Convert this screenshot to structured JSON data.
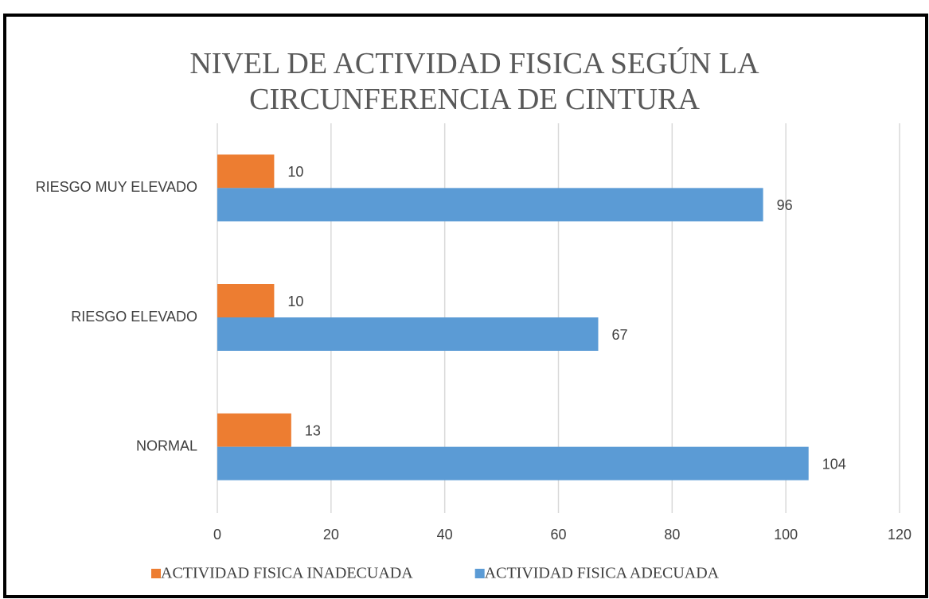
{
  "chart_data": {
    "type": "hbar",
    "title": "NIVEL DE ACTIVIDAD FISICA SEGÚN LA CIRCUNFERENCIA DE CINTURA",
    "categories": [
      "NORMAL",
      "RIESGO ELEVADO",
      "RIESGO MUY ELEVADO"
    ],
    "series": [
      {
        "name": "ACTIVIDAD FISICA INADECUADA",
        "color": "#ed7d31",
        "values": [
          13,
          10,
          10
        ]
      },
      {
        "name": "ACTIVIDAD FISICA ADECUADA",
        "color": "#5b9bd5",
        "values": [
          104,
          67,
          96
        ]
      }
    ],
    "xlim": [
      0,
      120
    ],
    "xticks": [
      0,
      20,
      40,
      60,
      80,
      100,
      120
    ],
    "grid": true,
    "legend": "bottom"
  }
}
